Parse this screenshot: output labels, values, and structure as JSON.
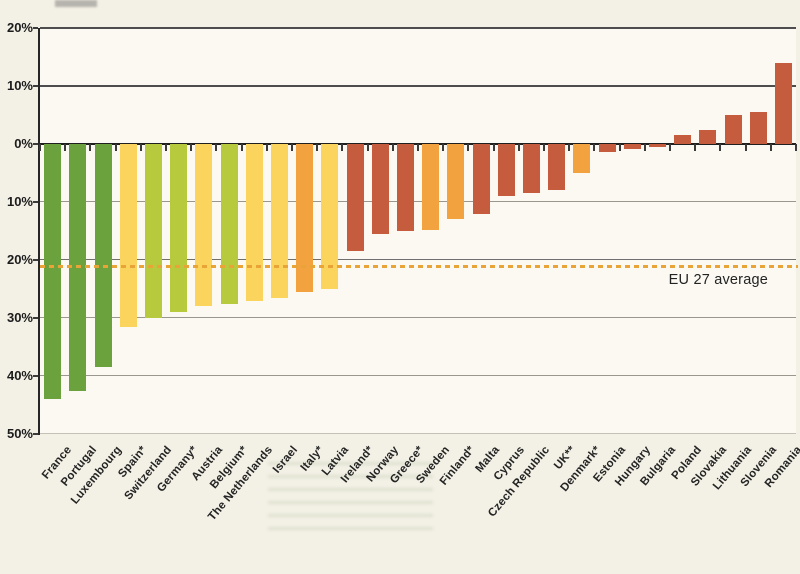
{
  "chart_data": {
    "type": "bar",
    "title": "",
    "y_axis": {
      "min": -50,
      "max": 20,
      "step": 10,
      "ticks": [
        {
          "value": 20,
          "label": "20%"
        },
        {
          "value": 10,
          "label": "10%"
        },
        {
          "value": 0,
          "label": "0%"
        },
        {
          "value": -10,
          "label": "10%"
        },
        {
          "value": -20,
          "label": "20%"
        },
        {
          "value": -30,
          "label": "30%"
        },
        {
          "value": -40,
          "label": "40%"
        },
        {
          "value": -50,
          "label": "50%"
        }
      ],
      "grid": "on"
    },
    "reference_line": {
      "label": "EU 27 average",
      "value": -21,
      "color": "#e9a437",
      "style": "dashed"
    },
    "palette": {
      "green": "#6ba23d",
      "yellow_green": "#b7ca3e",
      "yellow": "#fbd45e",
      "orange": "#f2a23f",
      "red": "#c45c3d"
    },
    "bars": [
      {
        "label": "France",
        "value": -44,
        "color": "green"
      },
      {
        "label": "Portugal",
        "value": -42.5,
        "color": "green"
      },
      {
        "label": "Luxembourg",
        "value": -38.5,
        "color": "green"
      },
      {
        "label": "Spain*",
        "value": -31.5,
        "color": "yellow"
      },
      {
        "label": "Switzerland",
        "value": -30,
        "color": "yellow_green"
      },
      {
        "label": "Germany*",
        "value": -29,
        "color": "yellow_green"
      },
      {
        "label": "Austria",
        "value": -28,
        "color": "yellow"
      },
      {
        "label": "Belgium*",
        "value": -27.5,
        "color": "yellow_green"
      },
      {
        "label": "The Netherlands",
        "value": -27,
        "color": "yellow"
      },
      {
        "label": "Israel",
        "value": -26.5,
        "color": "yellow"
      },
      {
        "label": "Italy*",
        "value": -25.5,
        "color": "orange"
      },
      {
        "label": "Latvia",
        "value": -25,
        "color": "yellow"
      },
      {
        "label": "Ireland*",
        "value": -18.5,
        "color": "red"
      },
      {
        "label": "Norway",
        "value": -15.5,
        "color": "red"
      },
      {
        "label": "Greece*",
        "value": -15,
        "color": "red"
      },
      {
        "label": "Sweden",
        "value": -14.8,
        "color": "orange"
      },
      {
        "label": "Finland*",
        "value": -13,
        "color": "orange"
      },
      {
        "label": "Malta",
        "value": -12,
        "color": "red"
      },
      {
        "label": "Cyprus",
        "value": -9,
        "color": "red"
      },
      {
        "label": "Czech Republic",
        "value": -8.5,
        "color": "red"
      },
      {
        "label": "UK**",
        "value": -8,
        "color": "red"
      },
      {
        "label": "Denmark*",
        "value": -5,
        "color": "orange"
      },
      {
        "label": "Estonia",
        "value": -1.3,
        "color": "red"
      },
      {
        "label": "Hungary",
        "value": -0.8,
        "color": "red"
      },
      {
        "label": "Bulgaria",
        "value": -0.6,
        "color": "red"
      },
      {
        "label": "Poland",
        "value": 1.5,
        "color": "red"
      },
      {
        "label": "Slovakia",
        "value": 2.5,
        "color": "red"
      },
      {
        "label": "Lithuania",
        "value": 5,
        "color": "red"
      },
      {
        "label": "Slovenia",
        "value": 5.5,
        "color": "red"
      },
      {
        "label": "Romania",
        "value": 14,
        "color": "red"
      }
    ]
  }
}
